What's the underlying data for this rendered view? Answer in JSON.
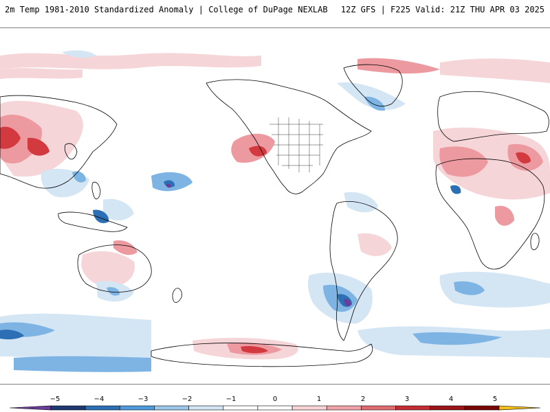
{
  "header": {
    "title_left": "2m Temp 1981-2010 Standardized Anomaly | College of DuPage NEXLAB",
    "title_right": "12Z GFS | F225 Valid: 21Z THU APR 03 2025"
  },
  "colorbar": {
    "tick_labels": [
      "−5",
      "−4",
      "−3",
      "−2",
      "−1",
      "0",
      "1",
      "2",
      "3",
      "4",
      "5"
    ],
    "bins": [
      {
        "color": "#6a3d9a"
      },
      {
        "color": "#1f3a73"
      },
      {
        "color": "#2c6fb5"
      },
      {
        "color": "#4f9bdc"
      },
      {
        "color": "#9cc7ea"
      },
      {
        "color": "#d3e4f3"
      },
      {
        "color": "#ffffff"
      },
      {
        "color": "#ffffff"
      },
      {
        "color": "#f8d3d6"
      },
      {
        "color": "#efa3a8"
      },
      {
        "color": "#e06c72"
      },
      {
        "color": "#c62d33"
      },
      {
        "color": "#9b1418"
      },
      {
        "color": "#7a0508"
      },
      {
        "color": "#f2c018"
      }
    ]
  },
  "map": {
    "background_color": "#ffffff",
    "coastline_color": "#000000",
    "warm_light": "#f6d5d8",
    "warm_mid": "#ec9aa0",
    "warm_strong": "#d33a40",
    "cold_light": "#d4e5f4",
    "cold_mid": "#7db4e3",
    "cold_strong": "#2d6fb5",
    "cold_extreme": "#6a3d9a"
  }
}
